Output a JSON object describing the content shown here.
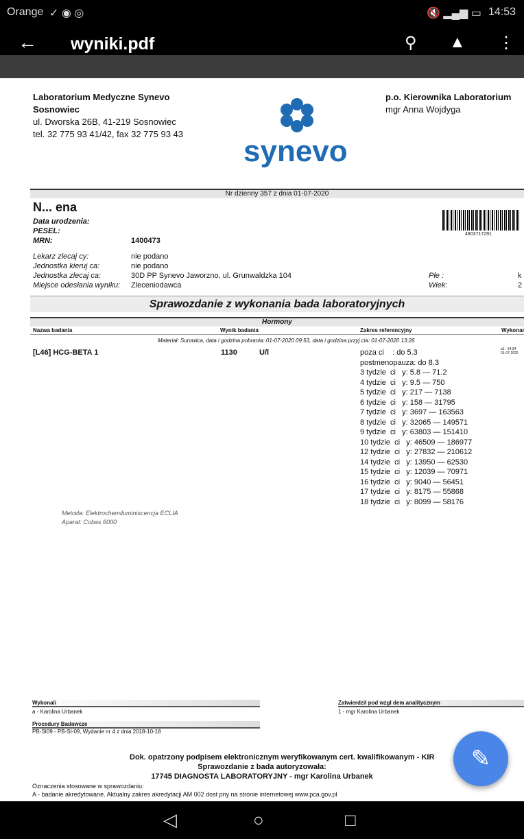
{
  "status": {
    "carrier": "Orange",
    "time": "14:53"
  },
  "appbar": {
    "title": "wyniki.pdf"
  },
  "doc": {
    "lab_name": "Laboratorium Medyczne Synevo",
    "lab_city": "Sosnowiec",
    "lab_addr": "ul. Dworska 26B, 41-219 Sosnowiec",
    "lab_tel": "tel. 32 775 93 41/42, fax 32 775 93 43",
    "logo": "synevo",
    "head_title": "p.o. Kierownika Laboratorium",
    "head_name": "mgr Anna Wojdyga",
    "daily_no": "Nr dzienny 357 z dnia 01-07-2020",
    "patient_name": "N...          ena",
    "barcode": "4803717291",
    "fields": [
      {
        "label": "Data urodzenia:",
        "value": ""
      },
      {
        "label": "PESEL:",
        "value": ""
      },
      {
        "label": "MRN:",
        "value": "1400473"
      }
    ],
    "info": [
      {
        "label": "Lekarz zlecaj cy:",
        "value": "nie podano"
      },
      {
        "label": "Jednostka kieruj ca:",
        "value": "nie podano"
      },
      {
        "label": "Jednostka zlecaj ca:",
        "value": "30D PP Synevo Jaworzno, ul. Grunwaldzka 104"
      },
      {
        "label": "Miejsce odesłania wyniku:",
        "value": "Zleceniodawca"
      }
    ],
    "sex_label": "Płe :",
    "sex_value": "k",
    "age_label": "Wiek:",
    "age_value": "2",
    "report_title": "Sprawozdanie z wykonania bada  laboratoryjnych",
    "section": "Hormony",
    "cols": [
      "Nazwa badania",
      "Wynik badania",
      "Zakres referencyjny",
      "Wykonan"
    ],
    "material": "Materiał: Surowica, data i godzina pobrania: 01-07-2020 09:53, data i godzina przyj  cia: 01-07-2020 13:26",
    "test_name": "[L46] HCG-BETA 1",
    "result": "1130",
    "unit": "U/l",
    "done": "a1 : 14:34\n01-07-2020",
    "ref": [
      "poza ci    : do 5.3",
      "postmenopauza: do 8.3",
      "3 tydzie  ci   y: 5.8 — 71.2",
      "4 tydzie  ci   y: 9.5 — 750",
      "5 tydzie  ci   y: 217 — 7138",
      "6 tydzie  ci   y: 158 — 31795",
      "7 tydzie  ci   y: 3697 — 163563",
      "8 tydzie  ci   y: 32065 — 149571",
      "9 tydzie  ci   y: 63803 — 151410",
      "10 tydzie  ci   y: 46509 — 186977",
      "12 tydzie  ci   y: 27832 — 210612",
      "14 tydzie  ci   y: 13950 — 62530",
      "15 tydzie  ci   y: 12039 — 70971",
      "16 tydzie  ci   y: 9040 — 56451",
      "17 tydzie  ci   y: 8175 — 55868",
      "18 tydzie  ci   y: 8099 — 58176"
    ],
    "method": "Metoda: Elektrochemiluminiscencja ECLIA",
    "device": "Aparat: Cobas 6000",
    "performed_label": "Wykonali",
    "performed": "a - Karolina Urbanek",
    "approved_label": "Zatwierdził pod wzgl  dem analitycznym",
    "approved": "1 - mgr Karolina Urbanek",
    "proc_label": "Procedury Badawcze",
    "proc": "PB-SI09 - PB-SI-09, Wydanie nr 4 z dnia 2018-10-18",
    "sig1": "Dok. opatrzony podpisem elektronicznym weryfikowanym cert. kwalifikowanym - KIR",
    "sig2": "Sprawozdanie z bada   autoryzowała:",
    "sig3": "17745 DIAGNOSTA LABORATORYJNY - mgr Karolina Urbanek",
    "legend1": "Oznaczenia stosowane w sprawozdaniu:",
    "legend2": "A - badanie akredytowane. Aktualny zakres akredytacji AM 002  dost  pny na stronie internetowej www.pca.gov.pl"
  },
  "colors": {
    "accent": "#4a86e8",
    "logo": "#1f6cb5"
  }
}
